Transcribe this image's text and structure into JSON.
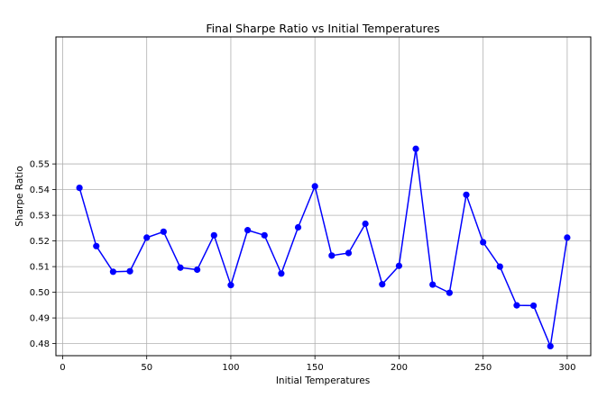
{
  "chart_data": {
    "type": "line",
    "title": "Final Sharpe Ratio vs Initial Temperatures",
    "xlabel": "Initial Temperatures",
    "ylabel": "Sharpe Ratio",
    "xlim": [
      -4,
      314
    ],
    "ylim": [
      0.4753,
      0.5995
    ],
    "xticks": [
      0,
      50,
      100,
      150,
      200,
      250,
      300
    ],
    "yticks": [
      0.48,
      0.49,
      0.5,
      0.51,
      0.52,
      0.53,
      0.54,
      0.55
    ],
    "ytick_labels": [
      "0.48",
      "0.49",
      "0.50",
      "0.51",
      "0.52",
      "0.53",
      "0.54",
      "0.55"
    ],
    "grid": true,
    "series": [
      {
        "color": "#0000ff",
        "marker": "circle",
        "x": [
          10,
          20,
          30,
          40,
          50,
          60,
          70,
          80,
          90,
          100,
          110,
          120,
          130,
          140,
          150,
          160,
          170,
          180,
          190,
          200,
          210,
          220,
          230,
          240,
          250,
          260,
          270,
          280,
          290,
          300
        ],
        "y": [
          0.5407,
          0.518,
          0.508,
          0.5082,
          0.5213,
          0.5236,
          0.5096,
          0.5088,
          0.5222,
          0.5028,
          0.5242,
          0.5222,
          0.5073,
          0.5253,
          0.5413,
          0.5143,
          0.5153,
          0.5267,
          0.5031,
          0.5103,
          0.5559,
          0.503,
          0.4998,
          0.538,
          0.5195,
          0.51,
          0.4949,
          0.4948,
          0.479,
          0.5213
        ]
      }
    ]
  }
}
